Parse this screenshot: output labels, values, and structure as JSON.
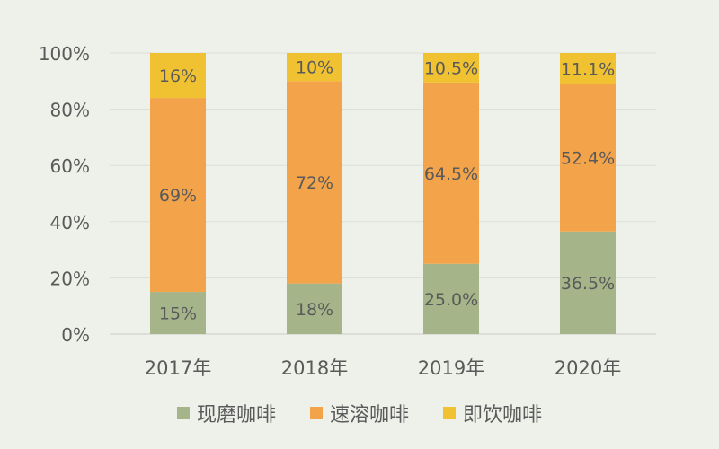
{
  "chart_data": {
    "type": "bar",
    "stacked": true,
    "categories": [
      "2017年",
      "2018年",
      "2019年",
      "2020年"
    ],
    "series": [
      {
        "name": "现磨咖啡",
        "color": "#a5b589",
        "values": [
          15,
          18,
          25.0,
          36.5
        ],
        "labels": [
          "15%",
          "18%",
          "25.0%",
          "36.5%"
        ]
      },
      {
        "name": "速溶咖啡",
        "color": "#f3a349",
        "values": [
          69,
          72,
          64.5,
          52.4
        ],
        "labels": [
          "69%",
          "72%",
          "64.5%",
          "52.4%"
        ]
      },
      {
        "name": "即饮咖啡",
        "color": "#f0c232",
        "values": [
          16,
          10,
          10.5,
          11.1
        ],
        "labels": [
          "16%",
          "10%",
          "10.5%",
          "11.1%"
        ]
      }
    ],
    "y_ticks": [
      "0%",
      "20%",
      "40%",
      "60%",
      "80%",
      "100%"
    ],
    "ylim": [
      0,
      100
    ],
    "grid": true,
    "legend_position": "bottom"
  }
}
